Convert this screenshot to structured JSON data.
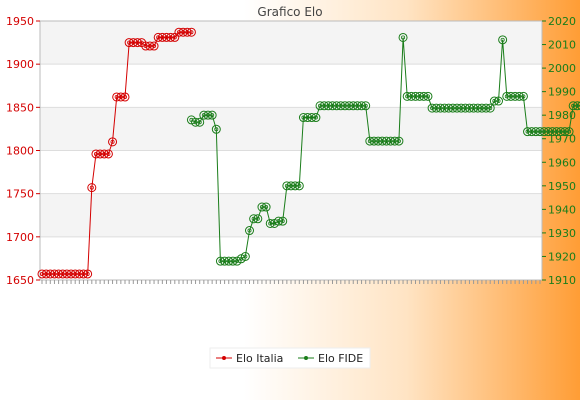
{
  "chart_data": {
    "type": "line",
    "title": "Grafico Elo",
    "xlabel": "",
    "ylabel": "",
    "y_left": {
      "ylim": [
        1650,
        1950
      ],
      "ticks": [
        1650,
        1700,
        1750,
        1800,
        1850,
        1900,
        1950
      ],
      "color": "#d40000"
    },
    "y_right": {
      "ylim": [
        1910,
        2020
      ],
      "ticks": [
        1910,
        1920,
        1930,
        1940,
        1950,
        1960,
        1970,
        1980,
        1990,
        2000,
        2010,
        2020
      ],
      "color": "#1a7d1a"
    },
    "grid": true,
    "legend_position": "bottom",
    "x_count": 121,
    "series": [
      {
        "name": "Elo Italia",
        "axis": "left",
        "color": "#d40000",
        "x_start": 0,
        "values": [
          1657,
          1657,
          1657,
          1657,
          1657,
          1657,
          1657,
          1657,
          1657,
          1657,
          1657,
          1657,
          1757,
          1796,
          1796,
          1796,
          1796,
          1810,
          1862,
          1862,
          1862,
          1925,
          1925,
          1925,
          1925,
          1921,
          1921,
          1921,
          1931,
          1931,
          1931,
          1931,
          1931,
          1937,
          1937,
          1937,
          1937
        ]
      },
      {
        "name": "Elo FIDE",
        "axis": "right",
        "color": "#1a7d1a",
        "x_start": 36,
        "values": [
          1978,
          1977,
          1977,
          1980,
          1980,
          1980,
          1974,
          1918,
          1918,
          1918,
          1918,
          1918,
          1919,
          1920,
          1931,
          1936,
          1936,
          1941,
          1941,
          1934,
          1934,
          1935,
          1935,
          1950,
          1950,
          1950,
          1950,
          1979,
          1979,
          1979,
          1979,
          1984,
          1984,
          1984,
          1984,
          1984,
          1984,
          1984,
          1984,
          1984,
          1984,
          1984,
          1984,
          1969,
          1969,
          1969,
          1969,
          1969,
          1969,
          1969,
          1969,
          2013,
          1988,
          1988,
          1988,
          1988,
          1988,
          1988,
          1983,
          1983,
          1983,
          1983,
          1983,
          1983,
          1983,
          1983,
          1983,
          1983,
          1983,
          1983,
          1983,
          1983,
          1983,
          1986,
          1986,
          2012,
          1988,
          1988,
          1988,
          1988,
          1988,
          1973,
          1973,
          1973,
          1973,
          1973,
          1973,
          1973,
          1973,
          1973,
          1973,
          1973,
          1984,
          1984,
          1984,
          1984,
          1975,
          1975,
          1975,
          1975,
          1975,
          1975,
          1975,
          1975,
          1975,
          1975,
          1975
        ]
      }
    ]
  }
}
